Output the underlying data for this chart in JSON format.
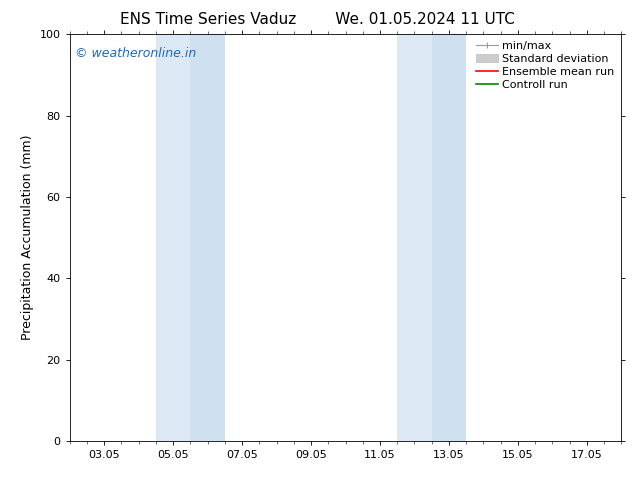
{
  "title_left": "ENS Time Series Vaduz",
  "title_right": "We. 01.05.2024 11 UTC",
  "ylabel": "Precipitation Accumulation (mm)",
  "watermark": "© weatheronline.in",
  "watermark_color": "#1a6bc2",
  "ylim": [
    0,
    100
  ],
  "yticks": [
    0,
    20,
    40,
    60,
    80,
    100
  ],
  "xlim": [
    1,
    17
  ],
  "xtick_labels": [
    "03.05",
    "05.05",
    "07.05",
    "09.05",
    "11.05",
    "13.05",
    "15.05",
    "17.05"
  ],
  "xtick_positions": [
    2,
    4,
    6,
    8,
    10,
    12,
    14,
    16
  ],
  "shaded_regions": [
    {
      "x_start": 3.5,
      "x_end": 4.5,
      "color": "#dce9f5"
    },
    {
      "x_start": 4.5,
      "x_end": 5.5,
      "color": "#cfe0f0"
    },
    {
      "x_start": 10.5,
      "x_end": 11.5,
      "color": "#dce9f5"
    },
    {
      "x_start": 11.5,
      "x_end": 12.5,
      "color": "#cfe0f0"
    }
  ],
  "bg_color": "#ffffff",
  "font_size_title": 11,
  "font_size_axis_label": 9,
  "font_size_tick": 8,
  "font_size_legend": 8,
  "font_size_watermark": 9,
  "legend_labels": [
    "min/max",
    "Standard deviation",
    "Ensemble mean run",
    "Controll run"
  ],
  "legend_colors": [
    "#aaaaaa",
    "#cccccc",
    "#ff0000",
    "#008800"
  ]
}
